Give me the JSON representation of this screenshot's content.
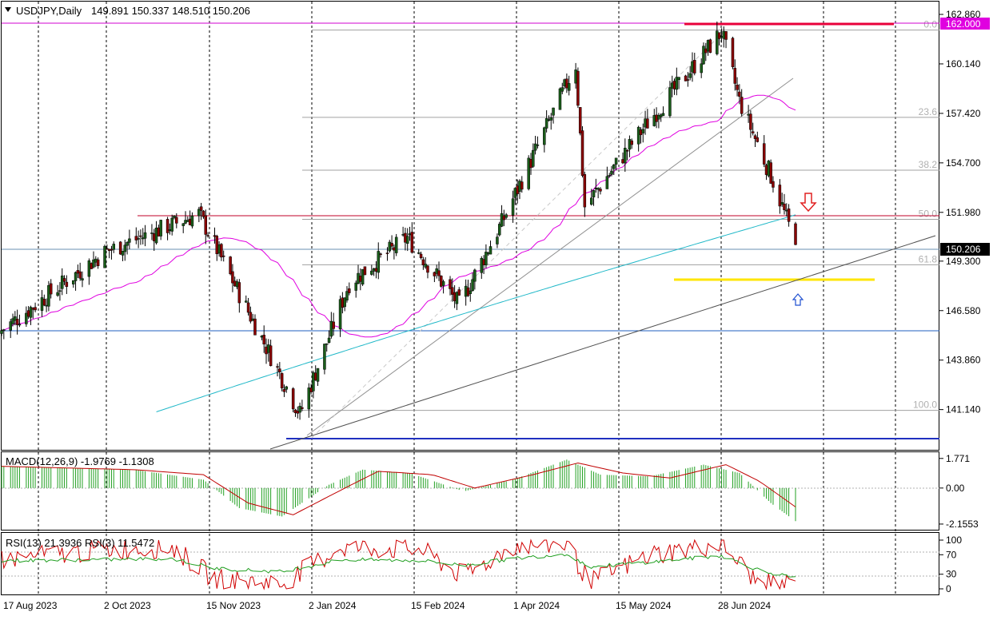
{
  "header": {
    "symbol_timeframe": "USDJPY,Daily",
    "ohlc": "149.891 150.337 148.510 150.206",
    "menu_icon": "triangle-down-icon"
  },
  "chart_data": [
    {
      "type": "candlestick",
      "name": "price",
      "title": "USDJPY,Daily",
      "x_ticks": [
        "17 Aug 2023",
        "2 Oct 2023",
        "15 Nov 2023",
        "2 Jan 2024",
        "15 Feb 2024",
        "1 Apr 2024",
        "15 May 2024",
        "28 Jun 2024"
      ],
      "y_ticks": [
        "162.860",
        "160.140",
        "157.420",
        "154.700",
        "151.980",
        "149.300",
        "146.580",
        "143.860",
        "141.140"
      ],
      "ylim": [
        139.5,
        163.3
      ],
      "last_price": 150.206,
      "last_price_label": "150.206",
      "resistance_label": "162.000",
      "key_points": [
        {
          "date": "2023-08-17",
          "close": 145.5
        },
        {
          "date": "2023-10-02",
          "close": 149.8
        },
        {
          "date": "2023-11-13",
          "close": 151.9
        },
        {
          "date": "2023-12-28",
          "close": 140.9
        },
        {
          "date": "2024-01-19",
          "close": 148.1
        },
        {
          "date": "2024-02-14",
          "close": 150.6
        },
        {
          "date": "2024-03-08",
          "close": 146.9
        },
        {
          "date": "2024-03-27",
          "close": 151.4
        },
        {
          "date": "2024-04-29",
          "close": 160.1
        },
        {
          "date": "2024-05-03",
          "close": 152.3
        },
        {
          "date": "2024-05-31",
          "close": 156.9
        },
        {
          "date": "2024-07-03",
          "close": 161.9
        },
        {
          "date": "2024-07-11",
          "close": 158.1
        },
        {
          "date": "2024-07-26",
          "close": 153.7
        },
        {
          "date": "2024-08-05",
          "close": 150.206
        }
      ],
      "fibonacci_levels": [
        {
          "label": "0.0",
          "price": 162.0
        },
        {
          "label": "23.6",
          "price": 157.2
        },
        {
          "label": "38.2",
          "price": 154.3
        },
        {
          "label": "50.0",
          "price": 151.6
        },
        {
          "label": "61.8",
          "price": 149.1
        },
        {
          "label": "100.0",
          "price": 141.1
        }
      ],
      "horizontal_lines": [
        {
          "price": 162.0,
          "color": "#e8003a"
        },
        {
          "price": 151.98,
          "color": "#c0002a"
        },
        {
          "price": 146.2,
          "color": "#1f5fbf"
        },
        {
          "price": 140.9,
          "color": "#2030c0"
        },
        {
          "price": 149.0,
          "color": "#ffe600"
        }
      ],
      "annotations": [
        "down-arrow-icon",
        "up-arrow-icon"
      ],
      "colors": {
        "magenta_ma": "#e000e0",
        "cyan_ma": "#20b8c8",
        "candle_body": "#1a5e1a",
        "candle_wick": "#000000",
        "down_candle": "#8b0000"
      }
    },
    {
      "type": "bar",
      "name": "macd",
      "title": "MACD(12,26,9) -1.9769 -1.1308",
      "y_ticks": [
        "1.771",
        "0.00",
        "-2.1553"
      ],
      "ylim": [
        -2.35,
        2.0
      ],
      "histogram_keypoints": [
        {
          "date": "2023-08-17",
          "value": 1.3
        },
        {
          "date": "2023-10-15",
          "value": 1.1
        },
        {
          "date": "2023-11-15",
          "value": 0.5
        },
        {
          "date": "2023-12-01",
          "value": -1.2
        },
        {
          "date": "2023-12-20",
          "value": -1.7
        },
        {
          "date": "2024-01-10",
          "value": 0.2
        },
        {
          "date": "2024-01-25",
          "value": 1.1
        },
        {
          "date": "2024-02-15",
          "value": 0.9
        },
        {
          "date": "2024-03-10",
          "value": -0.2
        },
        {
          "date": "2024-04-01",
          "value": 0.5
        },
        {
          "date": "2024-04-25",
          "value": 1.7
        },
        {
          "date": "2024-05-10",
          "value": 0.8
        },
        {
          "date": "2024-06-01",
          "value": 0.7
        },
        {
          "date": "2024-06-25",
          "value": 1.4
        },
        {
          "date": "2024-07-11",
          "value": 0.9
        },
        {
          "date": "2024-07-25",
          "value": -0.9
        },
        {
          "date": "2024-08-05",
          "value": -1.98
        }
      ],
      "signal_keypoints": [
        {
          "date": "2023-08-17",
          "value": 1.3
        },
        {
          "date": "2023-10-15",
          "value": 1.1
        },
        {
          "date": "2023-11-15",
          "value": 0.8
        },
        {
          "date": "2023-12-05",
          "value": -0.9
        },
        {
          "date": "2023-12-25",
          "value": -1.6
        },
        {
          "date": "2024-01-20",
          "value": 0.2
        },
        {
          "date": "2024-02-01",
          "value": 1.0
        },
        {
          "date": "2024-02-25",
          "value": 0.8
        },
        {
          "date": "2024-03-15",
          "value": 0.0
        },
        {
          "date": "2024-04-10",
          "value": 0.8
        },
        {
          "date": "2024-04-30",
          "value": 1.5
        },
        {
          "date": "2024-05-20",
          "value": 0.9
        },
        {
          "date": "2024-06-10",
          "value": 0.6
        },
        {
          "date": "2024-07-05",
          "value": 1.4
        },
        {
          "date": "2024-07-20",
          "value": 0.4
        },
        {
          "date": "2024-08-05",
          "value": -1.13
        }
      ],
      "colors": {
        "histogram": "#22a022",
        "signal": "#c00000"
      }
    },
    {
      "type": "line",
      "name": "rsi",
      "title": "RSI(13) 21.3936  RSI(3) 11.5472",
      "y_ticks": [
        "100",
        "70",
        "30",
        "0"
      ],
      "ylim": [
        0,
        100
      ],
      "series": [
        {
          "name": "RSI(13)",
          "color": "#1f9e1f",
          "keypoints": [
            {
              "date": "2023-08-17",
              "value": 58
            },
            {
              "date": "2023-10-01",
              "value": 60
            },
            {
              "date": "2023-11-01",
              "value": 62
            },
            {
              "date": "2023-11-20",
              "value": 42
            },
            {
              "date": "2023-12-20",
              "value": 35
            },
            {
              "date": "2024-01-15",
              "value": 60
            },
            {
              "date": "2024-02-20",
              "value": 58
            },
            {
              "date": "2024-03-10",
              "value": 48
            },
            {
              "date": "2024-04-01",
              "value": 62
            },
            {
              "date": "2024-04-25",
              "value": 72
            },
            {
              "date": "2024-05-05",
              "value": 45
            },
            {
              "date": "2024-06-01",
              "value": 55
            },
            {
              "date": "2024-07-03",
              "value": 68
            },
            {
              "date": "2024-07-20",
              "value": 38
            },
            {
              "date": "2024-08-05",
              "value": 21.4
            }
          ]
        },
        {
          "name": "RSI(3)",
          "color": "#d00000",
          "keypoints": [
            {
              "date": "2023-08-17",
              "value": 60
            },
            {
              "date": "2023-10-01",
              "value": 80
            },
            {
              "date": "2023-11-01",
              "value": 85
            },
            {
              "date": "2023-11-20",
              "value": 20
            },
            {
              "date": "2023-12-20",
              "value": 10
            },
            {
              "date": "2024-01-15",
              "value": 85
            },
            {
              "date": "2024-02-20",
              "value": 80
            },
            {
              "date": "2024-03-10",
              "value": 25
            },
            {
              "date": "2024-04-01",
              "value": 88
            },
            {
              "date": "2024-04-25",
              "value": 92
            },
            {
              "date": "2024-05-05",
              "value": 12
            },
            {
              "date": "2024-06-01",
              "value": 70
            },
            {
              "date": "2024-07-03",
              "value": 92
            },
            {
              "date": "2024-07-20",
              "value": 8
            },
            {
              "date": "2024-08-05",
              "value": 11.5
            }
          ]
        }
      ]
    }
  ]
}
